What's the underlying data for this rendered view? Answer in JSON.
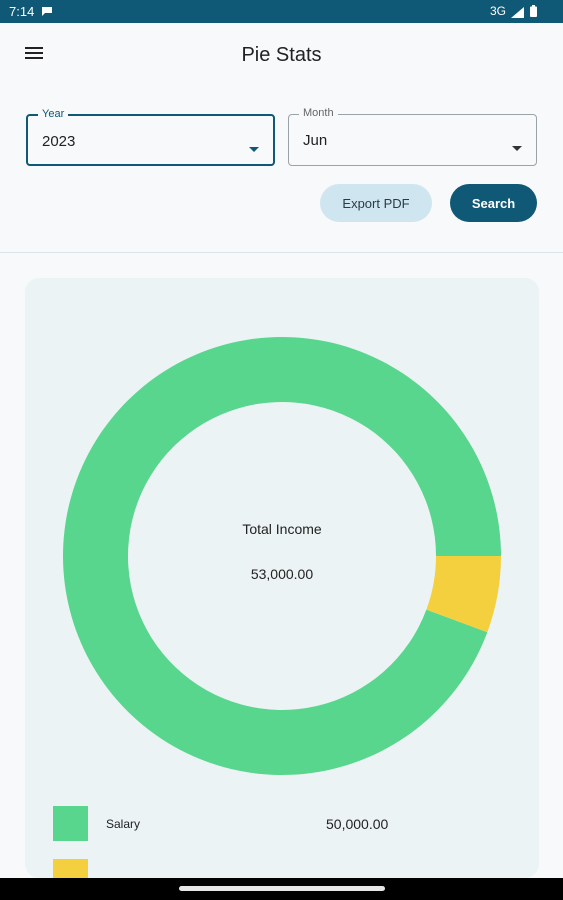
{
  "status_bar": {
    "time": "7:14",
    "network": "3G",
    "icons": [
      "notification-icon",
      "signal-icon",
      "battery-icon"
    ]
  },
  "app_bar": {
    "title": "Pie Stats",
    "menu_icon": "menu-icon"
  },
  "filters": {
    "year": {
      "label": "Year",
      "value": "2023"
    },
    "month": {
      "label": "Month",
      "value": "Jun"
    }
  },
  "actions": {
    "export_label": "Export PDF",
    "search_label": "Search"
  },
  "chart": {
    "center_title": "Total Income",
    "center_value": "53,000.00"
  },
  "legend": [
    {
      "label": "Salary",
      "value": "50,000.00",
      "color": "#58d68d"
    },
    {
      "label": "",
      "value": "",
      "color": "#f4d03f"
    }
  ],
  "chart_data": {
    "type": "pie",
    "title": "",
    "categories": [
      "Salary",
      ""
    ],
    "values": [
      50000,
      3000
    ],
    "colors": [
      "#58d68d",
      "#f4d03f"
    ],
    "total": 53000
  },
  "colors": {
    "primary": "#0f5876",
    "export_button": "#cfe6f0",
    "card_background": "#ecf3f5"
  }
}
